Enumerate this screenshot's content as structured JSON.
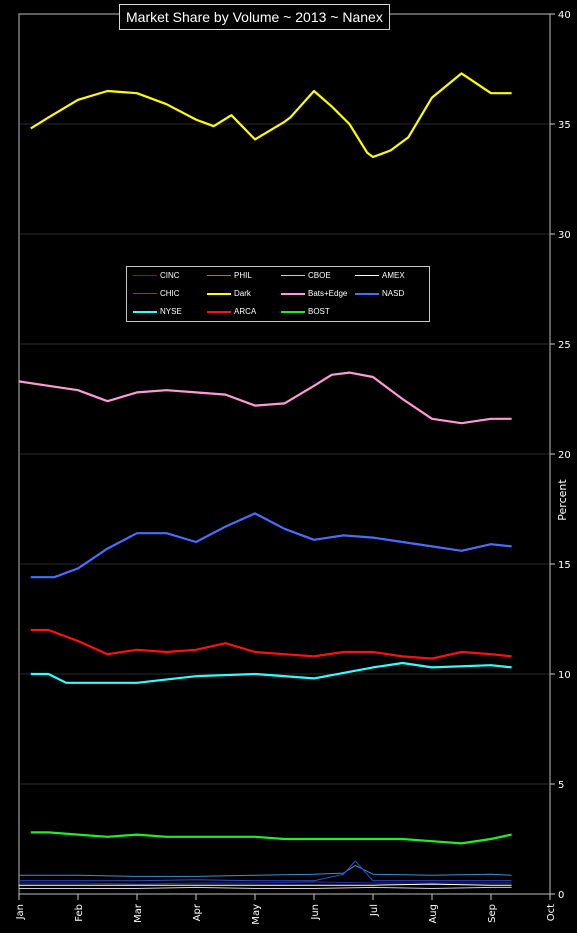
{
  "chart_data": {
    "type": "line",
    "title": "Market Share by Volume ~ 2013 ~ Nanex",
    "ylabel": "Percent",
    "xlabel": "",
    "ylim": [
      0,
      40
    ],
    "yticks": [
      "0",
      "5",
      "10",
      "15",
      "20",
      "25",
      "30",
      "35",
      "40"
    ],
    "xticks": [
      "Jan",
      "Feb",
      "Mar",
      "Apr",
      "May",
      "Jun",
      "Jul",
      "Aug",
      "Sep",
      "Oct"
    ],
    "grid": true,
    "legend_position": "center",
    "series": [
      {
        "name": "CINC",
        "color": "#1e2fb0",
        "thick": false,
        "x": [
          0,
          1,
          2,
          3,
          4,
          5,
          6,
          7,
          8,
          8.35
        ],
        "values": [
          0.5,
          0.5,
          0.45,
          0.5,
          0.5,
          0.55,
          0.5,
          0.5,
          0.5,
          0.5
        ]
      },
      {
        "name": "PHIL",
        "color": "#3a8fd8",
        "thick": false,
        "x": [
          0,
          1,
          2,
          3,
          4,
          5,
          5.5,
          5.7,
          6,
          7,
          8,
          8.35
        ],
        "values": [
          0.85,
          0.85,
          0.8,
          0.8,
          0.85,
          0.9,
          0.95,
          1.3,
          0.9,
          0.85,
          0.9,
          0.85
        ]
      },
      {
        "name": "CBOE",
        "color": "#cccccc",
        "thick": false,
        "x": [
          0,
          1,
          2,
          3,
          4,
          5,
          6,
          7,
          8,
          8.35
        ],
        "values": [
          0.25,
          0.25,
          0.25,
          0.3,
          0.25,
          0.25,
          0.3,
          0.25,
          0.3,
          0.3
        ]
      },
      {
        "name": "AMEX",
        "color": "#ffffff",
        "thick": false,
        "x": [
          0,
          1,
          2,
          3,
          4,
          5,
          6,
          7,
          8,
          8.35
        ],
        "values": [
          0.4,
          0.4,
          0.4,
          0.4,
          0.4,
          0.4,
          0.4,
          0.45,
          0.4,
          0.4
        ]
      },
      {
        "name": "CHIC",
        "color": "#3050d0",
        "thick": false,
        "x": [
          0,
          1,
          2,
          3,
          4,
          5,
          5.5,
          5.7,
          6,
          7,
          8,
          8.35
        ],
        "values": [
          0.6,
          0.6,
          0.6,
          0.65,
          0.6,
          0.6,
          0.9,
          1.5,
          0.6,
          0.6,
          0.6,
          0.6
        ]
      },
      {
        "name": "Dark",
        "color": "#ffff00",
        "thick": true,
        "x": [
          0.2,
          0.5,
          1,
          1.5,
          2,
          2.5,
          3,
          3.3,
          3.6,
          4,
          4.5,
          4.6,
          5,
          5.3,
          5.6,
          5.9,
          6,
          6.3,
          6.6,
          7,
          7.5,
          8,
          8.35
        ],
        "values": [
          34.8,
          35.3,
          36.1,
          36.5,
          36.4,
          35.9,
          35.2,
          34.9,
          35.4,
          34.3,
          35.1,
          35.3,
          36.5,
          35.8,
          35.0,
          33.7,
          33.5,
          33.8,
          34.4,
          36.2,
          37.3,
          36.4,
          36.4
        ]
      },
      {
        "name": "Bats+Edge",
        "color": "#ff9ad8",
        "thick": true,
        "x": [
          0,
          0.5,
          1,
          1.5,
          2,
          2.5,
          3,
          3.5,
          4,
          4.5,
          5,
          5.3,
          5.6,
          6,
          6.5,
          7,
          7.5,
          8,
          8.35
        ],
        "values": [
          23.3,
          23.1,
          22.9,
          22.4,
          22.8,
          22.9,
          22.8,
          22.7,
          22.2,
          22.3,
          23.1,
          23.6,
          23.7,
          23.5,
          22.5,
          21.6,
          21.4,
          21.6,
          21.6
        ]
      },
      {
        "name": "NASD",
        "color": "#4a6cff",
        "thick": true,
        "x": [
          0.2,
          0.6,
          1,
          1.5,
          2,
          2.5,
          3,
          3.5,
          4,
          4.5,
          5,
          5.5,
          6,
          6.5,
          7,
          7.5,
          8,
          8.35
        ],
        "values": [
          14.4,
          14.4,
          14.8,
          15.7,
          16.4,
          16.4,
          16.0,
          16.7,
          17.3,
          16.6,
          16.1,
          16.3,
          16.2,
          16.0,
          15.8,
          15.6,
          15.9,
          15.8
        ]
      },
      {
        "name": "NYSE",
        "color": "#33ffff",
        "thick": true,
        "x": [
          0.2,
          0.5,
          0.8,
          1,
          2,
          3,
          4,
          5,
          6,
          6.5,
          7,
          8,
          8.35
        ],
        "values": [
          10.0,
          10.0,
          9.6,
          9.6,
          9.6,
          9.9,
          10.0,
          9.8,
          10.3,
          10.5,
          10.3,
          10.4,
          10.3
        ]
      },
      {
        "name": "ARCA",
        "color": "#ff1111",
        "thick": true,
        "x": [
          0.2,
          0.5,
          1,
          1.5,
          2,
          2.5,
          3,
          3.5,
          4,
          4.5,
          5,
          5.5,
          6,
          6.5,
          7,
          7.5,
          8,
          8.35
        ],
        "values": [
          12.0,
          12.0,
          11.5,
          10.9,
          11.1,
          11.0,
          11.1,
          11.4,
          11.0,
          10.9,
          10.8,
          11.0,
          11.0,
          10.8,
          10.7,
          11.0,
          10.9,
          10.8
        ]
      },
      {
        "name": "BOST",
        "color": "#22ee22",
        "thick": true,
        "x": [
          0.2,
          0.5,
          1,
          1.5,
          2,
          2.5,
          3,
          3.5,
          4,
          4.5,
          5,
          5.5,
          6,
          6.5,
          7,
          7.5,
          8,
          8.35
        ],
        "values": [
          2.8,
          2.8,
          2.7,
          2.6,
          2.7,
          2.6,
          2.6,
          2.6,
          2.6,
          2.5,
          2.5,
          2.5,
          2.5,
          2.5,
          2.4,
          2.3,
          2.5,
          2.7
        ]
      }
    ]
  }
}
